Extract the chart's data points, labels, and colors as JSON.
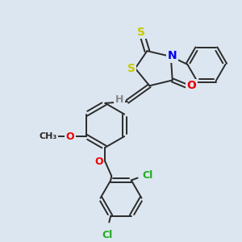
{
  "bg_color": "#dce6f0",
  "bond_color": "#2a2a2a",
  "atom_colors": {
    "S": "#c8c800",
    "N": "#0000ee",
    "O": "#ee0000",
    "Cl": "#22aa22",
    "H": "#888888",
    "C": "#2a2a2a"
  },
  "figsize": [
    3.0,
    3.0
  ],
  "dpi": 100
}
